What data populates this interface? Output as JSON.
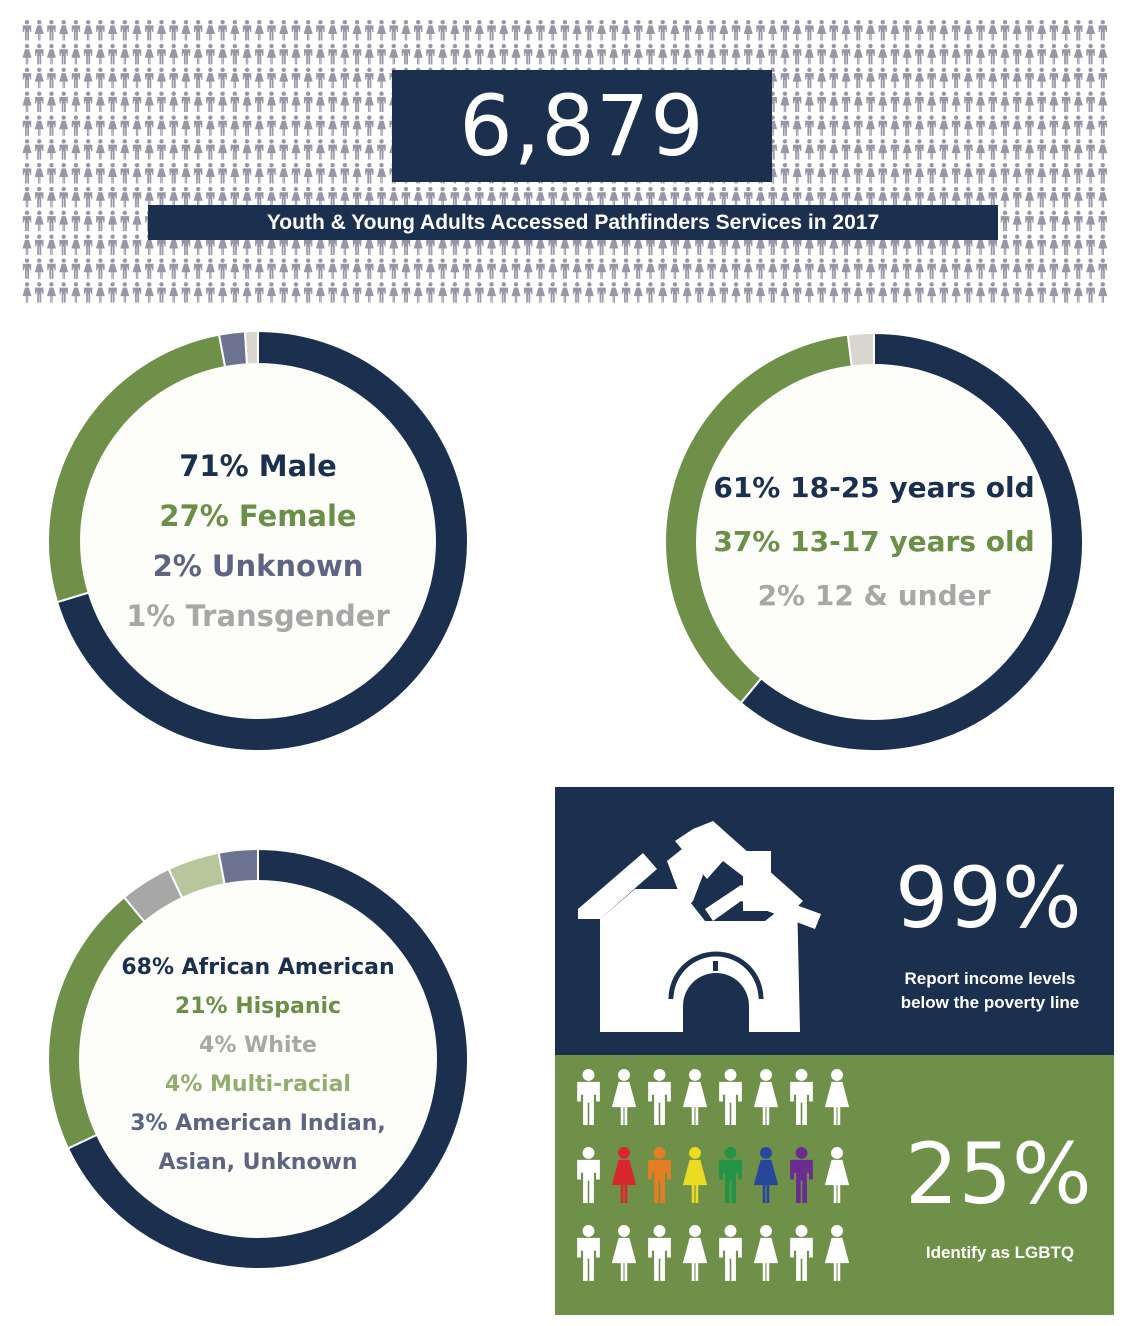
{
  "header": {
    "count": "6,879",
    "caption": "Youth & Young Adults Accessed Pathfinders Services in 2017"
  },
  "gender": {
    "labels": [
      "71% Male",
      "27% Female",
      "2% Unknown",
      "1% Transgender"
    ]
  },
  "age": {
    "labels": [
      "61% 18-25 years old",
      "37% 13-17 years old",
      "2% 12 & under"
    ]
  },
  "race": {
    "labels": [
      "68% African American",
      "21% Hispanic",
      "4% White",
      "4% Multi-racial",
      "3% American Indian,",
      "Asian, Unknown"
    ]
  },
  "poverty": {
    "percent": "99%",
    "caption_line1": "Report income levels",
    "caption_line2": "below the poverty line"
  },
  "lgbtq": {
    "percent": "25%",
    "caption": "Identify as LGBTQ",
    "rainbow_colors": [
      "#d7262d",
      "#e57d24",
      "#ebdc23",
      "#239446",
      "#26479a",
      "#6a2c8f"
    ]
  },
  "colors": {
    "navy": "#1b2f4e",
    "green": "#6e9049",
    "slate": "#6b7391",
    "gray": "#a7a7a7",
    "light_gray": "#d9d6d0",
    "light_green": "#b7c69b",
    "figures": "#9797a6"
  },
  "chart_data": [
    {
      "type": "pie",
      "categories": [
        "Male",
        "Female",
        "Unknown",
        "Transgender"
      ],
      "values": [
        71,
        27,
        2,
        1
      ],
      "colors": [
        "#1b2f4e",
        "#6e9049",
        "#6b7391",
        "#d9d6d0"
      ]
    },
    {
      "type": "pie",
      "categories": [
        "18-25 years old",
        "13-17 years old",
        "12 & under"
      ],
      "values": [
        61,
        37,
        2
      ],
      "colors": [
        "#1b2f4e",
        "#6e9049",
        "#d9d6d0"
      ]
    },
    {
      "type": "pie",
      "categories": [
        "African American",
        "Hispanic",
        "White",
        "Multi-racial",
        "American Indian, Asian, Unknown"
      ],
      "values": [
        68,
        21,
        4,
        4,
        3
      ],
      "colors": [
        "#1b2f4e",
        "#6e9049",
        "#a7a7a7",
        "#b7c69b",
        "#6b7391"
      ]
    }
  ]
}
